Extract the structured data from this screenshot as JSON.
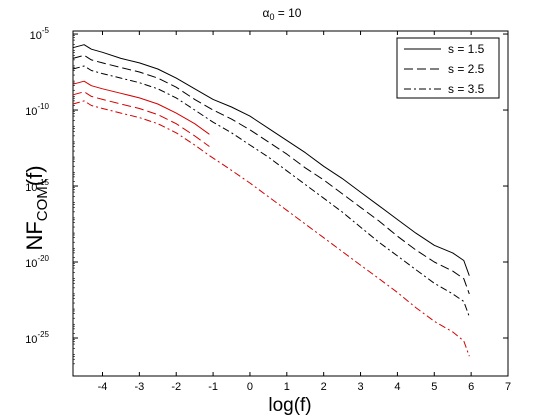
{
  "chart_data": {
    "type": "line",
    "title": {
      "prefix": "α",
      "sub": "0",
      "suffix": " = 10"
    },
    "xlabel": "log(f)",
    "ylabel": {
      "main": "NF",
      "sub": "COM",
      "tail": "(f)"
    },
    "xlim": [
      -4.8,
      7
    ],
    "ylim_log10": [
      -27.5,
      -4.8
    ],
    "x_ticks": [
      "-4",
      "-3",
      "-2",
      "-1",
      "0",
      "1",
      "2",
      "3",
      "4",
      "5",
      "6",
      "7"
    ],
    "y_ticks": [
      {
        "base": "10",
        "exp": "-5"
      },
      {
        "base": "10",
        "exp": "-10"
      },
      {
        "base": "10",
        "exp": "-15"
      },
      {
        "base": "10",
        "exp": "-20"
      },
      {
        "base": "10",
        "exp": "-25"
      }
    ],
    "legend": {
      "placement": "top-right",
      "entries": [
        {
          "label": "s = 1.5",
          "dash": "solid"
        },
        {
          "label": "s = 2.5",
          "dash": "dashed"
        },
        {
          "label": "s = 3.5",
          "dash": "dashdot"
        }
      ]
    },
    "colors": {
      "black": "#000000",
      "red": "#d40000"
    },
    "series": [
      {
        "name": "s = 1.5",
        "color": "black",
        "dash": "solid",
        "points": [
          [
            -4.8,
            -5.9
          ],
          [
            -4.5,
            -5.7
          ],
          [
            -4.3,
            -6.0
          ],
          [
            -4,
            -6.2
          ],
          [
            -3.5,
            -6.6
          ],
          [
            -3,
            -6.9
          ],
          [
            -2.5,
            -7.3
          ],
          [
            -2,
            -7.9
          ],
          [
            -1.5,
            -8.6
          ],
          [
            -1,
            -9.3
          ],
          [
            -0.5,
            -9.8
          ],
          [
            0,
            -10.4
          ],
          [
            0.5,
            -11.2
          ],
          [
            1,
            -12.0
          ],
          [
            1.5,
            -12.8
          ],
          [
            2,
            -13.7
          ],
          [
            2.5,
            -14.5
          ],
          [
            3,
            -15.4
          ],
          [
            3.5,
            -16.3
          ],
          [
            4,
            -17.2
          ],
          [
            4.5,
            -18.1
          ],
          [
            5,
            -18.9
          ],
          [
            5.5,
            -19.4
          ],
          [
            5.8,
            -19.9
          ],
          [
            5.95,
            -20.9
          ]
        ]
      },
      {
        "name": "s = 2.5",
        "color": "black",
        "dash": "dashed",
        "points": [
          [
            -4.8,
            -6.6
          ],
          [
            -4.5,
            -6.4
          ],
          [
            -4.3,
            -6.7
          ],
          [
            -4,
            -6.9
          ],
          [
            -3.5,
            -7.2
          ],
          [
            -3,
            -7.5
          ],
          [
            -2.5,
            -7.9
          ],
          [
            -2,
            -8.5
          ],
          [
            -1.5,
            -9.3
          ],
          [
            -1,
            -10.0
          ],
          [
            -0.5,
            -10.6
          ],
          [
            0,
            -11.3
          ],
          [
            0.5,
            -12.1
          ],
          [
            1,
            -12.9
          ],
          [
            1.5,
            -13.8
          ],
          [
            2,
            -14.6
          ],
          [
            2.5,
            -15.5
          ],
          [
            3,
            -16.4
          ],
          [
            3.5,
            -17.3
          ],
          [
            4,
            -18.3
          ],
          [
            4.5,
            -19.2
          ],
          [
            5,
            -20.0
          ],
          [
            5.5,
            -20.6
          ],
          [
            5.8,
            -21.1
          ],
          [
            5.95,
            -22.1
          ]
        ]
      },
      {
        "name": "s = 3.5",
        "color": "black",
        "dash": "dashdot",
        "points": [
          [
            -4.8,
            -7.3
          ],
          [
            -4.5,
            -7.1
          ],
          [
            -4.3,
            -7.4
          ],
          [
            -4,
            -7.6
          ],
          [
            -3.5,
            -7.9
          ],
          [
            -3,
            -8.2
          ],
          [
            -2.5,
            -8.6
          ],
          [
            -2,
            -9.2
          ],
          [
            -1.5,
            -10.0
          ],
          [
            -1,
            -10.8
          ],
          [
            -0.5,
            -11.5
          ],
          [
            0,
            -12.3
          ],
          [
            0.5,
            -13.1
          ],
          [
            1,
            -14.0
          ],
          [
            1.5,
            -14.9
          ],
          [
            2,
            -15.8
          ],
          [
            2.5,
            -16.7
          ],
          [
            3,
            -17.7
          ],
          [
            3.5,
            -18.7
          ],
          [
            4,
            -19.6
          ],
          [
            4.5,
            -20.5
          ],
          [
            5,
            -21.4
          ],
          [
            5.5,
            -22.1
          ],
          [
            5.8,
            -22.6
          ],
          [
            5.95,
            -23.6
          ]
        ]
      },
      {
        "name": "",
        "color": "red",
        "dash": "solid",
        "points": [
          [
            -4.8,
            -8.3
          ],
          [
            -4.5,
            -8.1
          ],
          [
            -4.3,
            -8.4
          ],
          [
            -4,
            -8.6
          ],
          [
            -3.5,
            -8.9
          ],
          [
            -3,
            -9.2
          ],
          [
            -2.5,
            -9.6
          ],
          [
            -2,
            -10.2
          ],
          [
            -1.5,
            -10.9
          ],
          [
            -1.1,
            -11.6
          ]
        ]
      },
      {
        "name": "",
        "color": "red",
        "dash": "dashed",
        "points": [
          [
            -4.8,
            -9.0
          ],
          [
            -4.5,
            -8.8
          ],
          [
            -4.3,
            -9.1
          ],
          [
            -4,
            -9.3
          ],
          [
            -3.5,
            -9.6
          ],
          [
            -3,
            -9.9
          ],
          [
            -2.5,
            -10.3
          ],
          [
            -2,
            -10.9
          ],
          [
            -1.5,
            -11.7
          ],
          [
            -1.1,
            -12.4
          ]
        ]
      },
      {
        "name": "",
        "color": "red",
        "dash": "dashdot",
        "points": [
          [
            -4.8,
            -9.6
          ],
          [
            -4.5,
            -9.4
          ],
          [
            -4.3,
            -9.7
          ],
          [
            -4,
            -9.9
          ],
          [
            -3.5,
            -10.2
          ],
          [
            -3,
            -10.5
          ],
          [
            -2.5,
            -10.9
          ],
          [
            -2,
            -11.5
          ],
          [
            -1.5,
            -12.3
          ],
          [
            -1.1,
            -13.0
          ],
          [
            -0.6,
            -13.8
          ],
          [
            0,
            -14.8
          ],
          [
            0.5,
            -15.7
          ],
          [
            1,
            -16.6
          ],
          [
            1.5,
            -17.5
          ],
          [
            2,
            -18.4
          ],
          [
            2.5,
            -19.3
          ],
          [
            3,
            -20.2
          ],
          [
            3.5,
            -21.1
          ],
          [
            4,
            -22.0
          ],
          [
            4.5,
            -23.0
          ],
          [
            5,
            -23.9
          ],
          [
            5.5,
            -24.6
          ],
          [
            5.8,
            -25.2
          ],
          [
            5.95,
            -26.2
          ]
        ]
      }
    ]
  }
}
